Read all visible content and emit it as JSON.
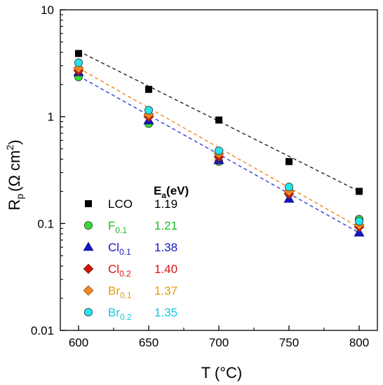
{
  "chart_data": {
    "type": "scatter",
    "title": "",
    "xlabel": "T (°C)",
    "ylabel": {
      "base": "R",
      "sub": "p",
      "units": "(Ω cm",
      "sup": "2",
      "close": ")"
    },
    "xlim": [
      587,
      813
    ],
    "ylim": [
      0.01,
      10
    ],
    "yscale": "log",
    "x_ticks": [
      600,
      650,
      700,
      750,
      800
    ],
    "y_ticks": [
      {
        "v": 0.01,
        "label": "0.01"
      },
      {
        "v": 0.1,
        "label": "0.1"
      },
      {
        "v": 1,
        "label": "1"
      },
      {
        "v": 10,
        "label": "10"
      }
    ],
    "grid": false,
    "legend_position": "bottom-left",
    "ea_header": {
      "base": "E",
      "sub": "a",
      "rest": "(eV)"
    },
    "series": [
      {
        "key": "lco",
        "base": "LCO",
        "sub": "",
        "ea": "1.19",
        "marker": "square",
        "color": "#000000",
        "label_color": "#000000",
        "fit_color": "#222222",
        "x": [
          600,
          650,
          700,
          750,
          800
        ],
        "y": [
          3.9,
          1.8,
          0.93,
          0.38,
          0.2
        ],
        "fit": [
          4.1,
          0.2
        ]
      },
      {
        "key": "f01",
        "base": "F",
        "sub": "0.1",
        "ea": "1.21",
        "marker": "circle",
        "color": "#33dd33",
        "label_color": "#22bb22",
        "fit_color": null,
        "x": [
          600,
          650,
          700,
          750,
          800
        ],
        "y": [
          2.35,
          0.86,
          0.38,
          0.19,
          0.11
        ],
        "fit": null
      },
      {
        "key": "cl01",
        "base": "Cl",
        "sub": "0.1",
        "ea": "1.38",
        "marker": "triangle",
        "color": "#1515c0",
        "label_color": "#1515c0",
        "fit_color": "#2b3fd6",
        "x": [
          600,
          650,
          700,
          750,
          800
        ],
        "y": [
          2.6,
          0.92,
          0.39,
          0.17,
          0.082
        ],
        "fit": [
          2.4,
          0.082
        ]
      },
      {
        "key": "cl02",
        "base": "Cl",
        "sub": "0.2",
        "ea": "1.40",
        "marker": "diamond",
        "color": "#cc1111",
        "label_color": "#dd1111",
        "fit_color": null,
        "x": [
          600,
          650,
          700,
          750,
          800
        ],
        "y": [
          2.7,
          1.0,
          0.42,
          0.19,
          0.093
        ],
        "fit": null
      },
      {
        "key": "br01",
        "base": "Br",
        "sub": "0.1",
        "ea": "1.37",
        "marker": "diamond",
        "color": "#ee8822",
        "label_color": "#e69a10",
        "fit_color": "#ee8822",
        "x": [
          600,
          650,
          700,
          750,
          800
        ],
        "y": [
          2.85,
          1.05,
          0.45,
          0.2,
          0.097
        ],
        "fit": [
          2.85,
          0.092
        ]
      },
      {
        "key": "br02",
        "base": "Br",
        "sub": "0.2",
        "ea": "1.35",
        "marker": "circle",
        "color": "#22e5ee",
        "label_color": "#11c8dd",
        "fit_color": null,
        "x": [
          600,
          650,
          700,
          750,
          800
        ],
        "y": [
          3.2,
          1.15,
          0.48,
          0.22,
          0.105
        ],
        "fit": null
      }
    ]
  }
}
